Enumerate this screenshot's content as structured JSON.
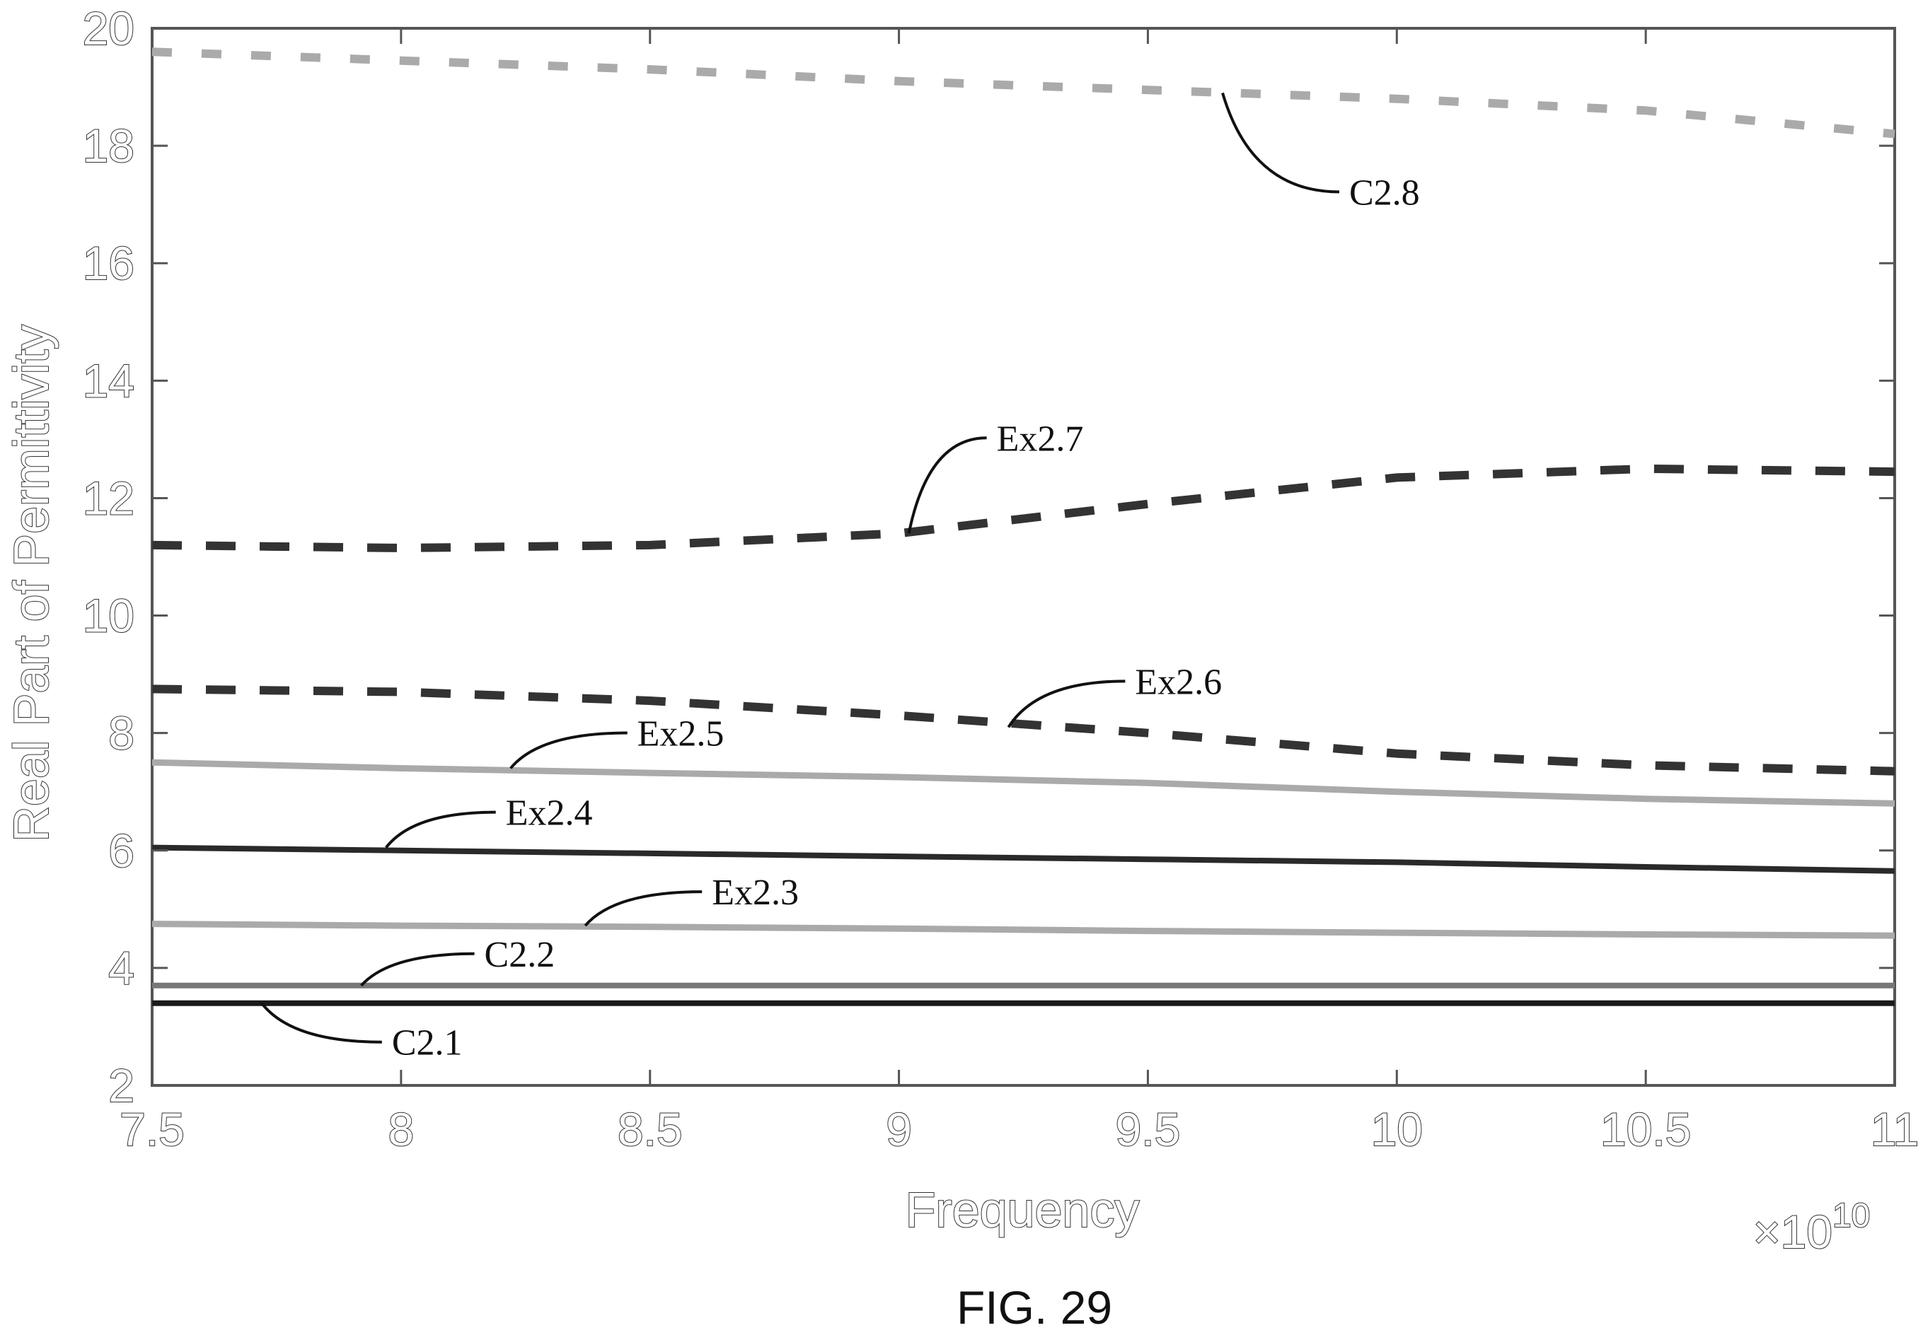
{
  "chart_data": {
    "type": "line",
    "title": "",
    "xlabel": "Frequency",
    "ylabel": "Real Part of Permittivity",
    "x_multiplier_label": "×10",
    "x_multiplier_exponent": "10",
    "xlim": [
      7.5,
      11
    ],
    "ylim": [
      2,
      20
    ],
    "xticks": [
      "7.5",
      "8",
      "8.5",
      "9",
      "9.5",
      "10",
      "10.5",
      "11"
    ],
    "yticks": [
      "2",
      "4",
      "6",
      "8",
      "10",
      "12",
      "14",
      "16",
      "18",
      "20"
    ],
    "grid": false,
    "x": [
      7.5,
      8.0,
      8.5,
      9.0,
      9.5,
      10.0,
      10.5,
      11.0
    ],
    "series": [
      {
        "name": "C2.1",
        "values": [
          3.4,
          3.4,
          3.4,
          3.4,
          3.4,
          3.4,
          3.4,
          3.4
        ],
        "color": "#1a1a1a",
        "style": "solid"
      },
      {
        "name": "C2.2",
        "values": [
          3.7,
          3.7,
          3.7,
          3.7,
          3.7,
          3.7,
          3.7,
          3.7
        ],
        "color": "#777777",
        "style": "solid"
      },
      {
        "name": "Ex2.3",
        "values": [
          4.75,
          4.72,
          4.7,
          4.67,
          4.63,
          4.6,
          4.57,
          4.55
        ],
        "color": "#aaaaaa",
        "style": "solid"
      },
      {
        "name": "Ex2.4",
        "values": [
          6.05,
          6.0,
          5.95,
          5.9,
          5.85,
          5.8,
          5.72,
          5.65
        ],
        "color": "#2a2a2a",
        "style": "solid"
      },
      {
        "name": "Ex2.5",
        "values": [
          7.5,
          7.4,
          7.32,
          7.25,
          7.15,
          7.0,
          6.88,
          6.8
        ],
        "color": "#aaaaaa",
        "style": "solid"
      },
      {
        "name": "Ex2.6",
        "values": [
          8.75,
          8.7,
          8.55,
          8.3,
          8.0,
          7.65,
          7.45,
          7.35
        ],
        "color": "#333333",
        "style": "dashed"
      },
      {
        "name": "Ex2.7",
        "values": [
          11.2,
          11.15,
          11.2,
          11.4,
          11.9,
          12.35,
          12.5,
          12.45
        ],
        "color": "#333333",
        "style": "dashed"
      },
      {
        "name": "C2.8",
        "values": [
          19.6,
          19.45,
          19.3,
          19.1,
          18.95,
          18.8,
          18.6,
          18.2
        ],
        "color": "#aaaaaa",
        "style": "dashed"
      }
    ],
    "annotations": [
      {
        "text": "C2.8",
        "x": 9.65,
        "y": 18.9
      },
      {
        "text": "Ex2.7",
        "x": 9.02,
        "y": 11.4
      },
      {
        "text": "Ex2.6",
        "x": 9.22,
        "y": 8.1
      },
      {
        "text": "Ex2.5",
        "x": 8.22,
        "y": 7.4
      },
      {
        "text": "Ex2.4",
        "x": 7.97,
        "y": 6.05
      },
      {
        "text": "Ex2.3",
        "x": 8.37,
        "y": 4.72
      },
      {
        "text": "C2.2",
        "x": 7.92,
        "y": 3.7
      },
      {
        "text": "C2.1",
        "x": 7.72,
        "y": 3.4
      }
    ]
  },
  "figure_label": "FIG. 29"
}
